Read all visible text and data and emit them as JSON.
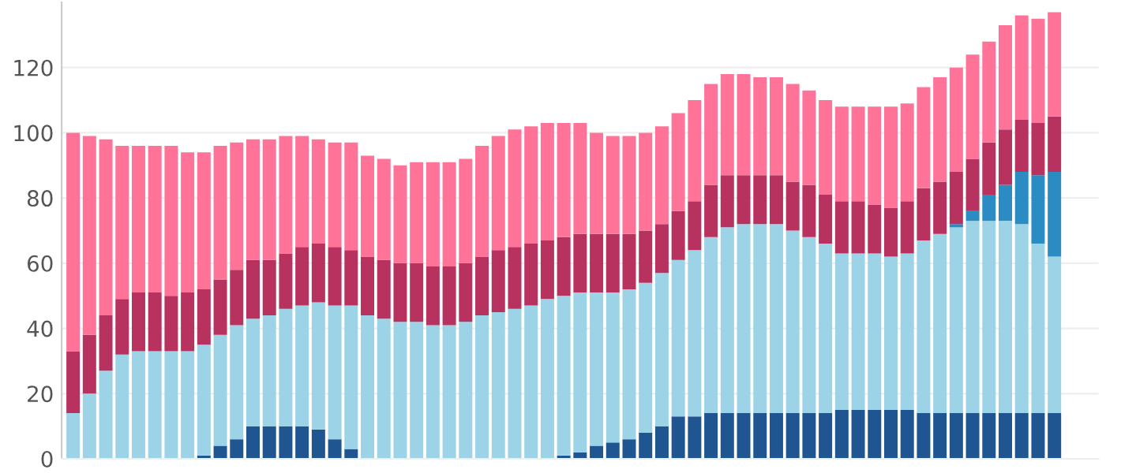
{
  "chart_data": {
    "type": "bar",
    "stacked": true,
    "categories": [
      null,
      null,
      null,
      null,
      null,
      null,
      null,
      null,
      null,
      null,
      null,
      null,
      null,
      null,
      null,
      null,
      null,
      null,
      null,
      null,
      null,
      null,
      null,
      null,
      null,
      null,
      null,
      null,
      null,
      null,
      null,
      null,
      null,
      null,
      null,
      null,
      null,
      null,
      null,
      null,
      null,
      null,
      null,
      null,
      null,
      null,
      null,
      null,
      null,
      null,
      null,
      null,
      null,
      null,
      null,
      null,
      null,
      null,
      null,
      null,
      null
    ],
    "series": [
      {
        "color": "#1f5591",
        "values": [
          0,
          0,
          0,
          0,
          0,
          0,
          0,
          0,
          1,
          4,
          6,
          10,
          10,
          10,
          10,
          9,
          6,
          3,
          0,
          0,
          0,
          0,
          0,
          0,
          0,
          0,
          0,
          0,
          0,
          0,
          1,
          2,
          4,
          5,
          6,
          8,
          10,
          13,
          13,
          14,
          14,
          14,
          14,
          14,
          14,
          14,
          14,
          15,
          15,
          15,
          15,
          15,
          14,
          14,
          14,
          14,
          14,
          14,
          14,
          14,
          14
        ]
      },
      {
        "color": "#9dd3e6",
        "values": [
          14,
          20,
          27,
          32,
          33,
          33,
          33,
          33,
          34,
          34,
          35,
          33,
          34,
          36,
          37,
          39,
          41,
          44,
          44,
          43,
          42,
          42,
          41,
          41,
          42,
          44,
          45,
          46,
          47,
          49,
          49,
          49,
          47,
          46,
          46,
          46,
          47,
          48,
          51,
          54,
          57,
          58,
          58,
          58,
          56,
          54,
          52,
          48,
          48,
          48,
          47,
          48,
          53,
          55,
          57,
          59,
          59,
          59,
          58,
          52,
          48
        ]
      },
      {
        "color": "#2b8cc4",
        "values": [
          0,
          0,
          0,
          0,
          0,
          0,
          0,
          0,
          0,
          0,
          0,
          0,
          0,
          0,
          0,
          0,
          0,
          0,
          0,
          0,
          0,
          0,
          0,
          0,
          0,
          0,
          0,
          0,
          0,
          0,
          0,
          0,
          0,
          0,
          0,
          0,
          0,
          0,
          0,
          0,
          0,
          0,
          0,
          0,
          0,
          0,
          0,
          0,
          0,
          0,
          0,
          0,
          0,
          0,
          1,
          3,
          8,
          11,
          16,
          21,
          26
        ]
      },
      {
        "color": "#b8325f",
        "values": [
          19,
          18,
          17,
          17,
          18,
          18,
          17,
          18,
          17,
          17,
          17,
          18,
          17,
          17,
          18,
          18,
          18,
          17,
          18,
          18,
          18,
          18,
          18,
          18,
          18,
          18,
          19,
          19,
          19,
          18,
          18,
          18,
          18,
          18,
          17,
          16,
          15,
          15,
          15,
          16,
          16,
          15,
          15,
          15,
          15,
          16,
          15,
          16,
          16,
          15,
          15,
          16,
          16,
          16,
          16,
          16,
          16,
          17,
          16,
          16,
          17
        ]
      },
      {
        "color": "#ff7399",
        "values": [
          67,
          61,
          54,
          47,
          45,
          45,
          46,
          43,
          42,
          41,
          39,
          37,
          37,
          36,
          34,
          32,
          32,
          33,
          31,
          31,
          30,
          31,
          32,
          32,
          32,
          34,
          35,
          36,
          36,
          36,
          35,
          34,
          31,
          30,
          30,
          30,
          30,
          30,
          31,
          31,
          31,
          31,
          30,
          30,
          30,
          29,
          29,
          29,
          29,
          30,
          31,
          30,
          31,
          32,
          32,
          32,
          31,
          32,
          32,
          32,
          32
        ]
      }
    ],
    "ylim": [
      0,
      140
    ],
    "yticks": [
      0,
      20,
      40,
      60,
      80,
      100,
      120
    ],
    "grid": "y",
    "tick_labels": "y"
  }
}
